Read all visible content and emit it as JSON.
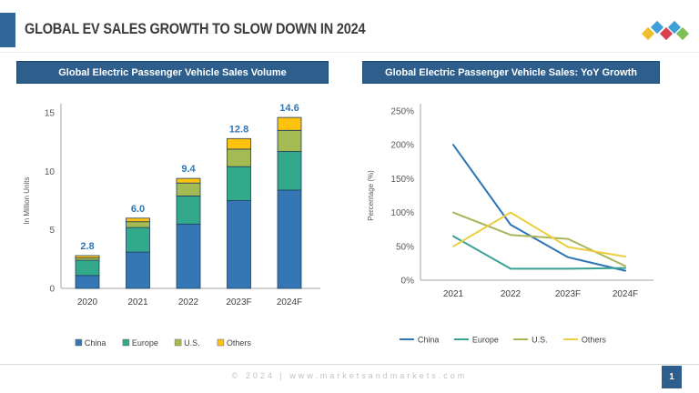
{
  "header": {
    "title": "GLOBAL EV SALES GROWTH TO SLOW DOWN IN 2024"
  },
  "logo": {
    "name": "marketsandmarkets-logo",
    "diamond_colors": [
      "#3FA0D9",
      "#3FA0D9",
      "#EFBE2C",
      "#D8414F",
      "#7FBF57"
    ]
  },
  "footer": {
    "copyright": "© 2024 | www.marketsandmarkets.com",
    "page_number": "1"
  },
  "colors": {
    "panel_header_bg": "#2E5F8C",
    "accent_bar": "#31689B",
    "total_label": "#2E75B6",
    "axis": "#A6A6A6",
    "tick_text": "#595959"
  },
  "chart_data": [
    {
      "type": "bar",
      "stacked": true,
      "title": "Global Electric Passenger Vehicle Sales Volume",
      "xlabel": "",
      "ylabel": "In Million Units",
      "categories": [
        "2020",
        "2021",
        "2022",
        "2023F",
        "2024F"
      ],
      "series": [
        {
          "name": "China",
          "color": "#3577B5",
          "values": [
            1.1,
            3.1,
            5.5,
            7.5,
            8.4
          ]
        },
        {
          "name": "Europe",
          "color": "#33A98C",
          "values": [
            1.3,
            2.1,
            2.4,
            2.9,
            3.3
          ]
        },
        {
          "name": "U.S.",
          "color": "#A4BA53",
          "values": [
            0.2,
            0.5,
            1.1,
            1.5,
            1.8
          ]
        },
        {
          "name": "Others",
          "color": "#FFC20E",
          "values": [
            0.2,
            0.3,
            0.4,
            0.9,
            1.1
          ]
        }
      ],
      "totals": [
        "2.8",
        "6.0",
        "9.4",
        "12.8",
        "14.6"
      ],
      "yticks": [
        0,
        5,
        10,
        15
      ],
      "ylim": [
        0,
        15
      ],
      "grid": false,
      "legend_position": "bottom"
    },
    {
      "type": "line",
      "title": "Global Electric Passenger Vehicle Sales: YoY Growth",
      "xlabel": "",
      "ylabel": "Percentage (%)",
      "categories": [
        "2021",
        "2022",
        "2023F",
        "2024F"
      ],
      "series": [
        {
          "name": "China",
          "color": "#2E75B6",
          "values": [
            200,
            82,
            34,
            14
          ]
        },
        {
          "name": "Europe",
          "color": "#38A294",
          "values": [
            65,
            17,
            17,
            18
          ]
        },
        {
          "name": "U.S.",
          "color": "#A9B45B",
          "values": [
            100,
            67,
            61,
            21
          ]
        },
        {
          "name": "Others",
          "color": "#EDCE3F",
          "values": [
            50,
            100,
            49,
            35
          ]
        }
      ],
      "yticks": [
        "0%",
        "50%",
        "100%",
        "150%",
        "200%",
        "250%"
      ],
      "ylim": [
        0,
        250
      ],
      "grid": false,
      "legend_position": "bottom"
    }
  ]
}
